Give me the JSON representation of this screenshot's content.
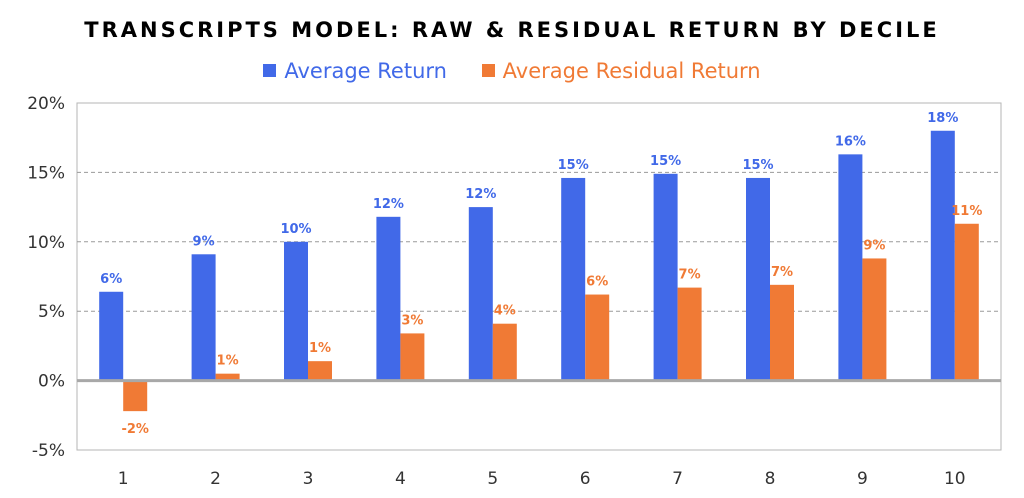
{
  "chart_data": {
    "type": "bar",
    "title": "TRANSCRIPTS MODEL: RAW & RESIDUAL RETURN BY DECILE",
    "categories": [
      "1",
      "2",
      "3",
      "4",
      "5",
      "6",
      "7",
      "8",
      "9",
      "10"
    ],
    "series": [
      {
        "name": "Average Return",
        "color": "#4169e8",
        "values": [
          6.4,
          9.1,
          10.0,
          11.8,
          12.5,
          14.6,
          14.9,
          14.6,
          16.3,
          18.0
        ],
        "labels": [
          "6%",
          "9%",
          "10%",
          "12%",
          "12%",
          "15%",
          "15%",
          "15%",
          "16%",
          "18%"
        ]
      },
      {
        "name": "Average Residual Return",
        "color": "#f07a35",
        "values": [
          -2.2,
          0.5,
          1.4,
          3.4,
          4.1,
          6.2,
          6.7,
          6.9,
          8.8,
          11.3
        ],
        "labels": [
          "-2%",
          "1%",
          "1%",
          "3%",
          "4%",
          "6%",
          "7%",
          "7%",
          "9%",
          "11%"
        ]
      }
    ],
    "ylim": [
      -5,
      20
    ],
    "yticks": [
      -5,
      0,
      5,
      10,
      15,
      20
    ],
    "ytick_labels": [
      "-5%",
      "0%",
      "5%",
      "10%",
      "15%",
      "20%"
    ],
    "xlabel": "",
    "ylabel": "",
    "grid": "horizontal dashed",
    "legend_position": "top"
  }
}
